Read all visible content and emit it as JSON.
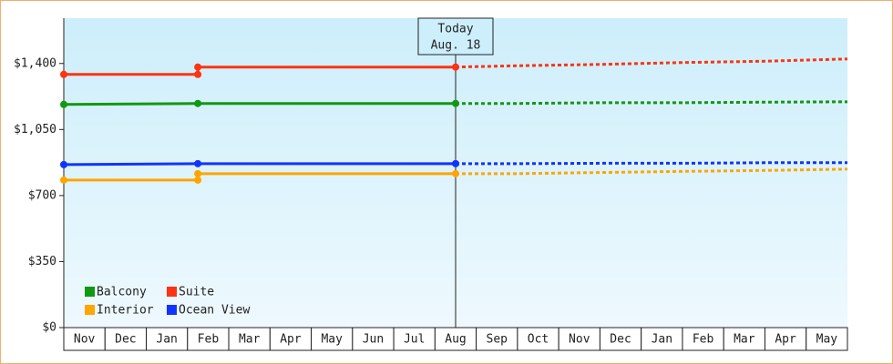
{
  "chart_data": {
    "type": "line",
    "categories": [
      "Nov",
      "Dec",
      "Jan",
      "Feb",
      "Mar",
      "Apr",
      "May",
      "Jun",
      "Jul",
      "Aug",
      "Sep",
      "Oct",
      "Nov",
      "Dec",
      "Jan",
      "Feb",
      "Mar",
      "Apr",
      "May"
    ],
    "xlim": [
      0,
      19
    ],
    "ylim": [
      0,
      1640
    ],
    "yticks": [
      {
        "value": 0,
        "label": "$0"
      },
      {
        "value": 350,
        "label": "$350"
      },
      {
        "value": 700,
        "label": "$700"
      },
      {
        "value": 1050,
        "label": "$1,050"
      },
      {
        "value": 1400,
        "label": "$1,400"
      }
    ],
    "today": {
      "x": 9.5,
      "label": [
        "Today",
        "Aug. 18"
      ]
    },
    "legend": "lower left",
    "series": [
      {
        "name": "Balcony",
        "color": "#119911",
        "x": [
          0,
          3.25,
          9.5
        ],
        "values": [
          1183,
          1188,
          1188
        ],
        "forecast": {
          "x": [
            9.5,
            11,
            13,
            15,
            17,
            19
          ],
          "values": [
            1188,
            1188,
            1192,
            1192,
            1195,
            1197
          ]
        }
      },
      {
        "name": "Suite",
        "color": "#ff3311",
        "x": [
          0,
          3.25,
          3.25,
          9.5
        ],
        "values": [
          1342,
          1342,
          1381,
          1381
        ],
        "forecast": {
          "x": [
            9.5,
            11,
            13,
            15,
            17,
            19
          ],
          "values": [
            1381,
            1388,
            1395,
            1405,
            1412,
            1424
          ]
        }
      },
      {
        "name": "Interior",
        "color": "#ffa500",
        "x": [
          0,
          3.25,
          3.25,
          9.5
        ],
        "values": [
          782,
          782,
          816,
          816
        ],
        "forecast": {
          "x": [
            9.5,
            11,
            13,
            15,
            17,
            19
          ],
          "values": [
            816,
            816,
            822,
            828,
            833,
            840
          ]
        }
      },
      {
        "name": "Ocean View",
        "color": "#1133ff",
        "x": [
          0,
          3.25,
          9.5
        ],
        "values": [
          864,
          869,
          869
        ],
        "forecast": {
          "x": [
            9.5,
            11,
            13,
            15,
            17,
            19
          ],
          "values": [
            869,
            869,
            871,
            871,
            874,
            874
          ]
        }
      }
    ]
  }
}
